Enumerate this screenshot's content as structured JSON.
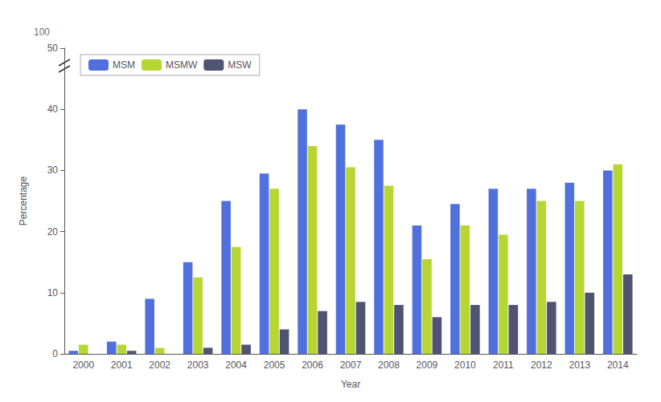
{
  "chart_data": {
    "type": "bar",
    "xlabel": "Year",
    "ylabel": "Percentage",
    "categories": [
      "2000",
      "2001",
      "2002",
      "2003",
      "2004",
      "2005",
      "2006",
      "2007",
      "2008",
      "2009",
      "2010",
      "2011",
      "2012",
      "2013",
      "2014"
    ],
    "series": [
      {
        "name": "MSM",
        "values": [
          0.5,
          2.0,
          9.0,
          15.0,
          25.0,
          29.5,
          40.0,
          37.5,
          35.0,
          21.0,
          24.5,
          27.0,
          27.0,
          28.0,
          30.0
        ]
      },
      {
        "name": "MSMW",
        "values": [
          1.5,
          1.5,
          1.0,
          12.5,
          17.5,
          27.0,
          34.0,
          30.5,
          27.5,
          15.5,
          21.0,
          19.5,
          25.0,
          25.0,
          31.0
        ]
      },
      {
        "name": "MSW",
        "values": [
          0.0,
          0.5,
          0.0,
          1.0,
          1.5,
          4.0,
          7.0,
          8.5,
          8.0,
          6.0,
          8.0,
          8.0,
          8.5,
          10.0,
          13.0
        ]
      }
    ],
    "ylim": [
      0,
      50
    ],
    "yticks": [
      0,
      10,
      20,
      30,
      40,
      50
    ],
    "grid": false,
    "legend": "upper left",
    "annotations": [
      {
        "text": "100"
      }
    ]
  }
}
